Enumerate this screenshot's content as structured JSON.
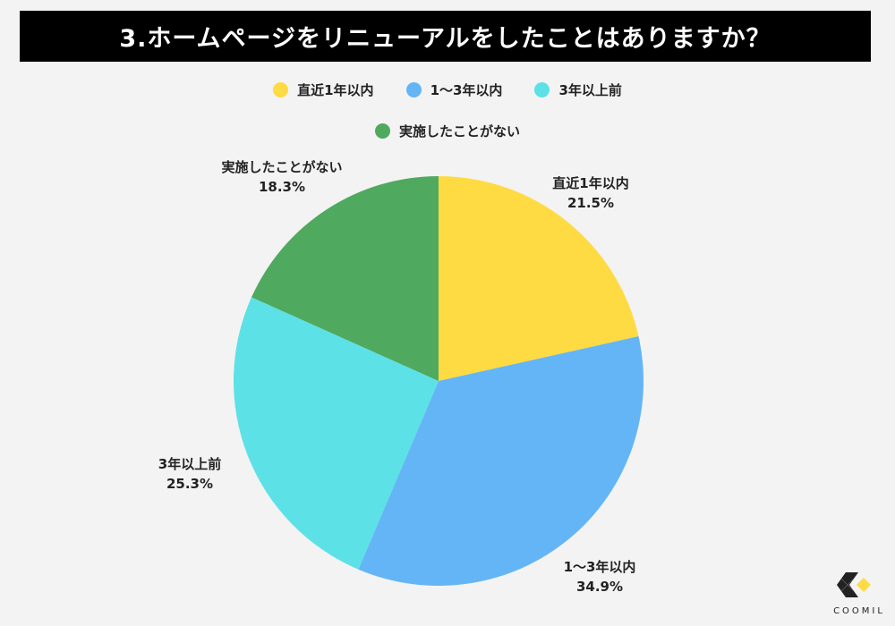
{
  "chart_data": {
    "type": "pie",
    "title": "3.ホームページをリニューアルをしたことはありますか？",
    "categories": [
      "直近1年以内",
      "1〜3年以内",
      "3年以上前",
      "実施したことがない"
    ],
    "values": [
      21.5,
      34.9,
      25.3,
      18.3
    ],
    "value_labels": [
      "21.5%",
      "34.9%",
      "25.3%",
      "18.3%"
    ],
    "colors": [
      "#FFDB43",
      "#64B5F6",
      "#5CE1E6",
      "#4FA95F"
    ],
    "legend_placement": "top",
    "start": "top, clockwise"
  },
  "logo": {
    "text": "COOMIL"
  }
}
